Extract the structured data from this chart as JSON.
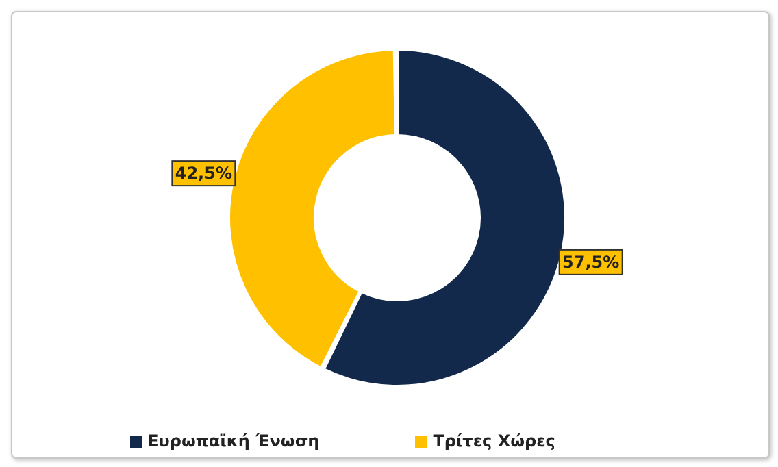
{
  "chart_data": {
    "type": "donut",
    "categories": [
      "Ευρωπαϊκή Ένωση",
      "Τρίτες Χώρες"
    ],
    "values": [
      57.5,
      42.5
    ],
    "colors": [
      "#13294b",
      "#ffc000"
    ],
    "value_labels": [
      "57,5%",
      "42,5%"
    ],
    "legend": "bottom"
  }
}
